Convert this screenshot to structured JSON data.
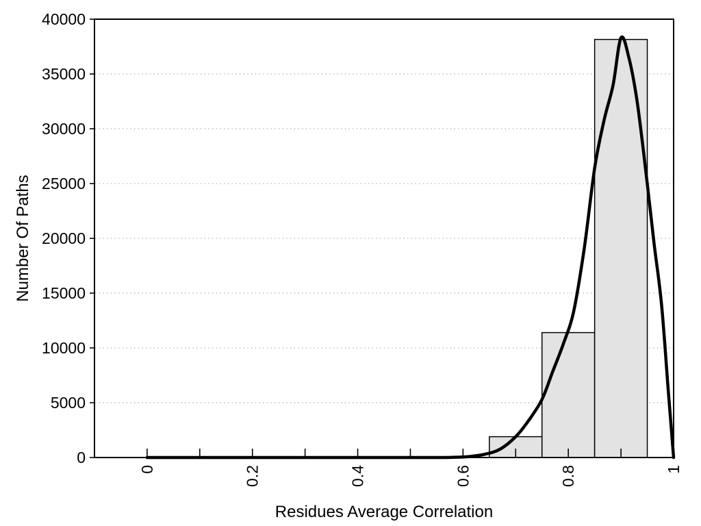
{
  "page": {
    "background": "#ffffff"
  },
  "chart_data": {
    "type": "bar",
    "subtype": "histogram-with-fit-curve",
    "title": "",
    "xlabel": "Residues Average Correlation",
    "ylabel": "Number Of Paths",
    "xlim": [
      -0.1,
      1.0
    ],
    "ylim": [
      0,
      40000
    ],
    "grid": "horizontal-dotted",
    "legend": "none",
    "x_tick_label_rotation_deg": -90,
    "y_ticks": [
      {
        "value": 0,
        "label": "0"
      },
      {
        "value": 5000,
        "label": "5000"
      },
      {
        "value": 10000,
        "label": "10000"
      },
      {
        "value": 15000,
        "label": "15000"
      },
      {
        "value": 20000,
        "label": "20000"
      },
      {
        "value": 25000,
        "label": "25000"
      },
      {
        "value": 30000,
        "label": "30000"
      },
      {
        "value": 35000,
        "label": "35000"
      },
      {
        "value": 40000,
        "label": "40000"
      }
    ],
    "x_minor_ticks": [
      0,
      0.1,
      0.2,
      0.3,
      0.4,
      0.5,
      0.6,
      0.7,
      0.8,
      0.9,
      1.0
    ],
    "x_label_ticks": [
      {
        "value": 0,
        "label": "0"
      },
      {
        "value": 0.2,
        "label": "0.2"
      },
      {
        "value": 0.4,
        "label": "0.4"
      },
      {
        "value": 0.6,
        "label": "0.6"
      },
      {
        "value": 0.8,
        "label": "0.8"
      },
      {
        "value": 1,
        "label": "1"
      }
    ],
    "bins": [
      {
        "x0": 0.65,
        "x1": 0.75,
        "count": 1900
      },
      {
        "x0": 0.75,
        "x1": 0.85,
        "count": 11400
      },
      {
        "x0": 0.85,
        "x1": 0.95,
        "count": 38150
      }
    ],
    "fit_curve_points": [
      [
        0.0,
        0
      ],
      [
        0.1,
        0
      ],
      [
        0.2,
        0
      ],
      [
        0.3,
        0
      ],
      [
        0.4,
        0
      ],
      [
        0.5,
        0
      ],
      [
        0.55,
        0
      ],
      [
        0.58,
        20
      ],
      [
        0.61,
        80
      ],
      [
        0.64,
        280
      ],
      [
        0.67,
        750
      ],
      [
        0.7,
        1900
      ],
      [
        0.725,
        3400
      ],
      [
        0.75,
        5300
      ],
      [
        0.77,
        7800
      ],
      [
        0.79,
        10300
      ],
      [
        0.81,
        13300
      ],
      [
        0.83,
        19000
      ],
      [
        0.85,
        26400
      ],
      [
        0.868,
        30800
      ],
      [
        0.885,
        34000
      ],
      [
        0.9,
        38300
      ],
      [
        0.915,
        36500
      ],
      [
        0.931,
        32400
      ],
      [
        0.95,
        25000
      ],
      [
        0.963,
        19500
      ],
      [
        0.977,
        14000
      ],
      [
        0.99,
        6000
      ],
      [
        1.0,
        0
      ]
    ],
    "colors": {
      "bar_fill": "#e3e3e3",
      "bar_border": "#000000",
      "curve": "#000000",
      "grid": "#bdbdbd",
      "axis": "#000000",
      "text": "#000000"
    }
  }
}
